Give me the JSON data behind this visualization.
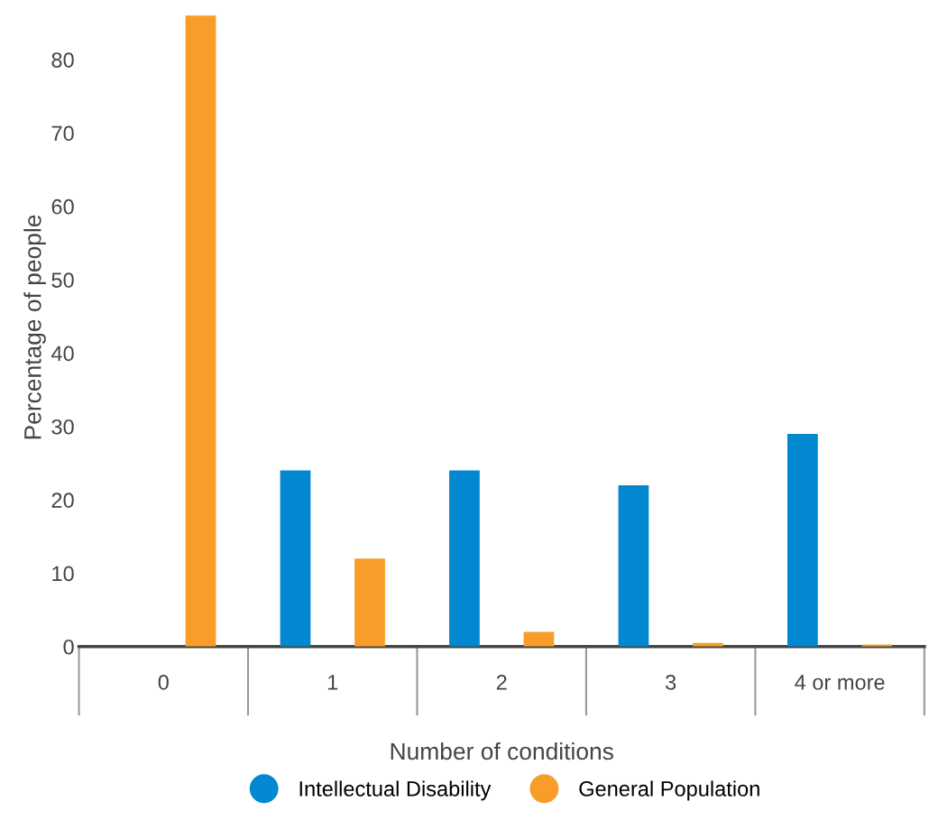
{
  "chart_data": {
    "type": "bar",
    "xlabel": "Number of conditions",
    "ylabel": "Percentage of people",
    "categories": [
      "0",
      "1",
      "2",
      "3",
      "4 or more"
    ],
    "series": [
      {
        "name": "Intellectual Disability",
        "color": "#0288d1",
        "values": [
          0,
          24,
          24,
          22,
          29
        ]
      },
      {
        "name": "General Population",
        "color": "#f89c2a",
        "values": [
          86,
          12,
          2,
          0.5,
          0.3
        ]
      }
    ],
    "ylim": [
      0,
      87
    ],
    "yticks": [
      0,
      10,
      20,
      30,
      40,
      50,
      60,
      70,
      80
    ],
    "grid": false,
    "legend": "bottom"
  }
}
